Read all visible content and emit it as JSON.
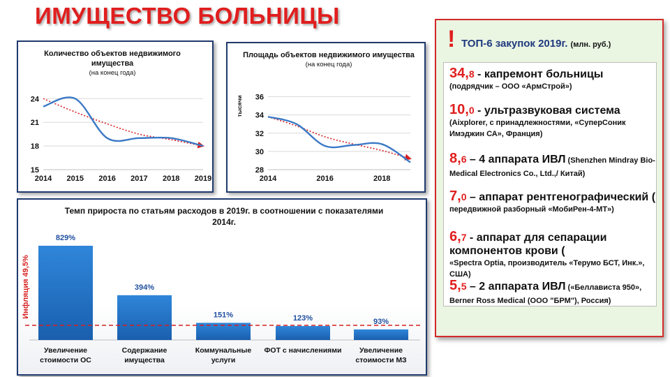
{
  "page": {
    "title": "ИМУЩЕСТВО БОЛЬНИЦЫ"
  },
  "chart_data": [
    {
      "type": "line",
      "title": "Количество объектов недвижимого имущества",
      "subtitle": "(на конец года)",
      "x": [
        2014,
        2015,
        2016,
        2017,
        2018,
        2019
      ],
      "series": [
        {
          "values": [
            23,
            24,
            19,
            19,
            19,
            18
          ]
        }
      ],
      "trendline": {
        "values": [
          24,
          22.3,
          20.8,
          19.5,
          18.8,
          18
        ]
      },
      "yticks": [
        15,
        18,
        21,
        24
      ],
      "ylim": [
        15,
        25
      ],
      "colors": {
        "series": "#3b79c6",
        "trend": "#d61f1f"
      }
    },
    {
      "type": "line",
      "title": "Площадь объектов недвижимого имущества",
      "subtitle": "(на конец года)",
      "ylabel": "тысячи",
      "x": [
        2014,
        2015,
        2016,
        2017,
        2018,
        2019
      ],
      "series": [
        {
          "values": [
            33.8,
            33,
            30.6,
            30.7,
            30.8,
            28.8
          ]
        }
      ],
      "trendline": {
        "values": [
          33.8,
          32.8,
          31.6,
          30.8,
          30.1,
          29.2
        ]
      },
      "xticks": [
        2014,
        2016,
        2018
      ],
      "yticks": [
        28,
        30,
        32,
        34,
        36
      ],
      "ylim": [
        28,
        36.5
      ],
      "colors": {
        "series": "#3b79c6",
        "trend": "#d61f1f"
      }
    },
    {
      "type": "bar",
      "title": "Темп прироста по статьям расходов в 2019г. в соотношении с показателями 2014г.",
      "categories": [
        [
          "Увеличение",
          "стоимости ОС"
        ],
        [
          "Содержание",
          "имущества"
        ],
        [
          "Коммунальные",
          "услуги"
        ],
        [
          "ФОТ с начислениями"
        ],
        [
          "Увеличение",
          "стоимости МЗ"
        ]
      ],
      "values": [
        829,
        394,
        151,
        123,
        93
      ],
      "labels": [
        "829%",
        "394%",
        "151%",
        "123%",
        "93%"
      ],
      "reference_line": {
        "value": 49.5,
        "label": "Инфляция 49,5%"
      },
      "colors": {
        "bar": "#1f6fc5",
        "reference": "#d61f1f",
        "label": "#1f4f9e"
      }
    }
  ],
  "top6": {
    "title": "ТОП-6 закупок 2019г.",
    "unit": "(млн. руб.)",
    "items": [
      {
        "int": "34,",
        "dec": "8",
        "head": " - капремонт больницы",
        "note": "(подрядчик – ООО «АрмСтрой»)"
      },
      {
        "int": "10,",
        "dec": "0",
        "head": " - ультразвуковая система",
        "note": "(Aixplorer, с принадлежностями, «СуперСоник Имэджин СА», Франция)"
      },
      {
        "int": "8,",
        "dec": "6",
        "head": " – 4 аппарата ИВЛ",
        "note": " (Shenzhen Mindray Bio-Medical Electronics Co., Ltd.,/ Китай)"
      },
      {
        "int": "7,",
        "dec": "0",
        "head": " – аппарат рентгенографический (",
        "note": "передвижной разборный «МобиРен-4-МТ»)"
      },
      {
        "int": "6,",
        "dec": "7",
        "head": " -  аппарат для сепарации компонентов крови (",
        "note": "«Spectra Optia, производитель «Терумо БСТ, Инк.», США)"
      },
      {
        "int": "5,",
        "dec": "5",
        "head": " – 2 аппарата ИВЛ",
        "note": " («Беллависта 950», Berner Ross Medical (ООО \"БРМ\"), Россия)"
      }
    ]
  }
}
